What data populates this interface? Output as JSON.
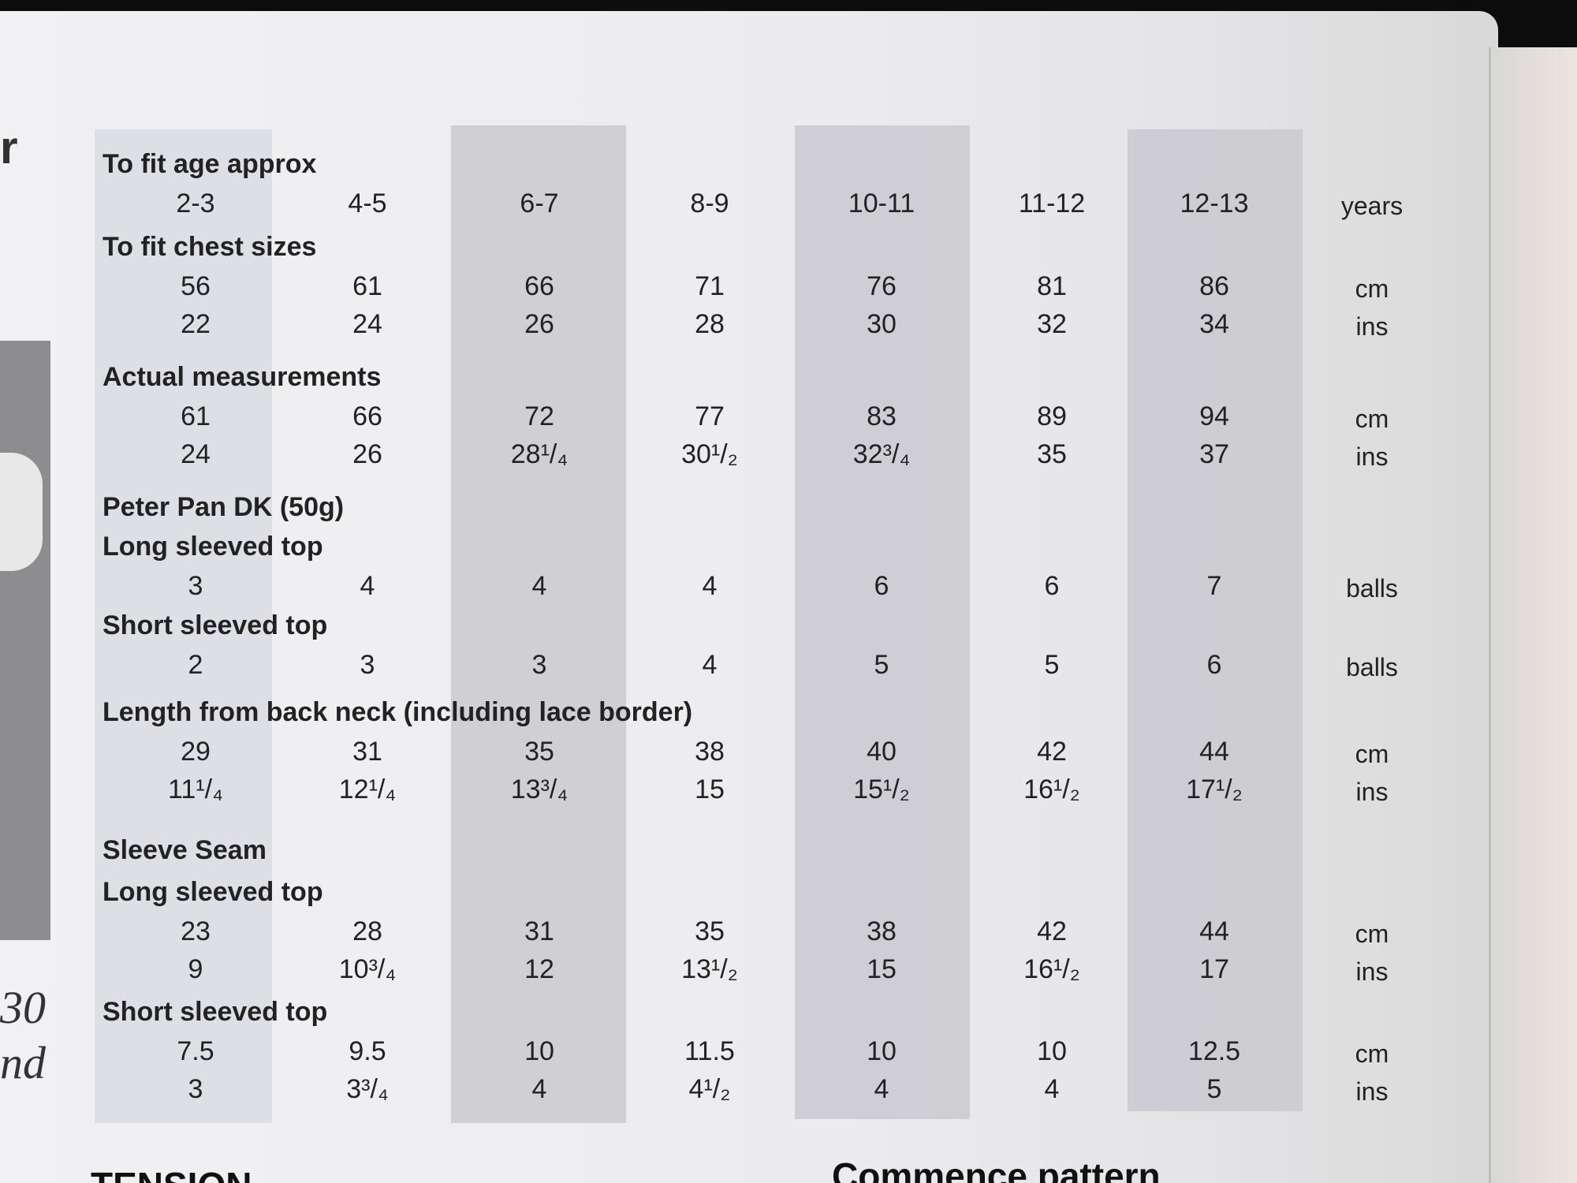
{
  "edge_letters": {
    "top": "r",
    "mid1": "30",
    "mid2": "nd"
  },
  "columns": [
    "2-3",
    "4-5",
    "6-7",
    "8-9",
    "10-11",
    "11-12",
    "12-13"
  ],
  "sections": [
    {
      "heading": "To fit age approx",
      "rows": [
        {
          "values": [
            "2-3",
            "4-5",
            "6-7",
            "8-9",
            "10-11",
            "11-12",
            "12-13"
          ],
          "unit": "years"
        }
      ]
    },
    {
      "heading": "To fit chest sizes",
      "rows": [
        {
          "values": [
            "56",
            "61",
            "66",
            "71",
            "76",
            "81",
            "86"
          ],
          "unit": "cm"
        },
        {
          "values": [
            "22",
            "24",
            "26",
            "28",
            "30",
            "32",
            "34"
          ],
          "unit": "ins"
        }
      ]
    },
    {
      "heading": "Actual measurements",
      "rows": [
        {
          "values": [
            "61",
            "66",
            "72",
            "77",
            "83",
            "89",
            "94"
          ],
          "unit": "cm"
        },
        {
          "values": [
            "24",
            "26",
            "28¹/₄",
            "30¹/₂",
            "32³/₄",
            "35",
            "37"
          ],
          "unit": "ins"
        }
      ]
    },
    {
      "heading": "Peter Pan DK (50g)",
      "rows": []
    },
    {
      "heading": "Long sleeved top",
      "rows": [
        {
          "values": [
            "3",
            "4",
            "4",
            "4",
            "6",
            "6",
            "7"
          ],
          "unit": "balls"
        }
      ]
    },
    {
      "heading": "Short sleeved top",
      "rows": [
        {
          "values": [
            "2",
            "3",
            "3",
            "4",
            "5",
            "5",
            "6"
          ],
          "unit": "balls"
        }
      ]
    },
    {
      "heading": "Length from back neck (including lace border)",
      "rows": [
        {
          "values": [
            "29",
            "31",
            "35",
            "38",
            "40",
            "42",
            "44"
          ],
          "unit": "cm"
        },
        {
          "values": [
            "11¹/₄",
            "12¹/₄",
            "13³/₄",
            "15",
            "15¹/₂",
            "16¹/₂",
            "17¹/₂"
          ],
          "unit": "ins"
        }
      ]
    },
    {
      "heading": "Sleeve Seam",
      "rows": []
    },
    {
      "heading": "Long sleeved top",
      "rows": [
        {
          "values": [
            "23",
            "28",
            "31",
            "35",
            "38",
            "42",
            "44"
          ],
          "unit": "cm"
        },
        {
          "values": [
            "9",
            "10³/₄",
            "12",
            "13¹/₂",
            "15",
            "16¹/₂",
            "17"
          ],
          "unit": "ins"
        }
      ]
    },
    {
      "heading": "Short sleeved top",
      "rows": [
        {
          "values": [
            "7.5",
            "9.5",
            "10",
            "11.5",
            "10",
            "10",
            "12.5"
          ],
          "unit": "cm"
        },
        {
          "values": [
            "3",
            "3³/₄",
            "4",
            "4¹/₂",
            "4",
            "4",
            "5"
          ],
          "unit": "ins"
        }
      ]
    }
  ],
  "footer": {
    "left": "TENSION",
    "right": "Commence pattern"
  }
}
